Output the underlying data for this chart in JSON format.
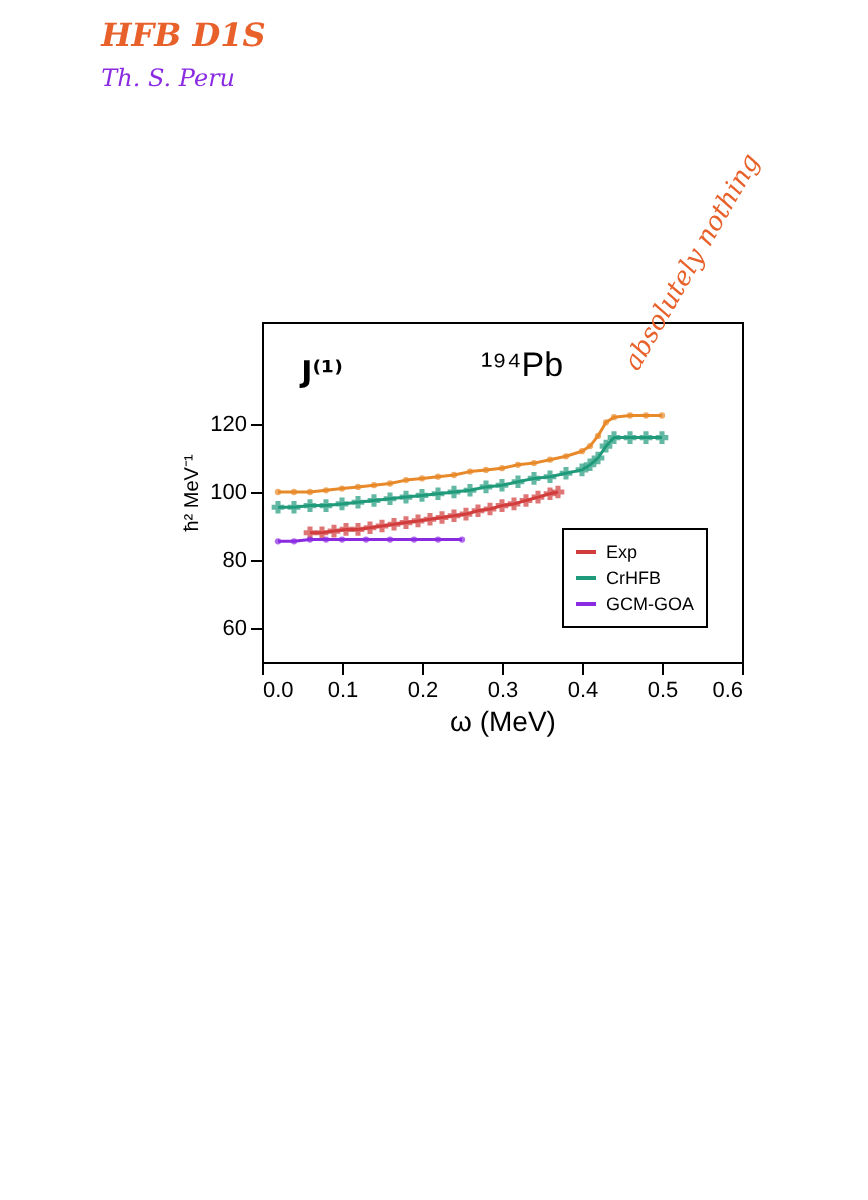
{
  "chart_data": {
    "type": "line",
    "title": "HFB D1S",
    "subtitle": "Th. S. Peru",
    "xlabel": "ω (MeV)",
    "ylabel": "ħ² MeV⁻¹",
    "annotations": [
      "absolutely nothing",
      "J⁽¹⁾",
      "¹⁹⁴Pb"
    ],
    "xlim": [
      0,
      0.6
    ],
    "xticks": [
      {
        "value": 0,
        "label": "0.0"
      },
      0.1,
      0.2,
      0.3,
      0.4,
      0.5,
      0.6
    ],
    "ylim": [
      50,
      150
    ],
    "yticks": [
      60,
      80,
      100,
      120
    ],
    "grid": false,
    "legend": "bottom right",
    "series": [
      {
        "color": "#e8892a",
        "marker": "circle",
        "x": [
          0.02,
          0.04,
          0.06,
          0.08,
          0.1,
          0.12,
          0.14,
          0.16,
          0.18,
          0.2,
          0.22,
          0.24,
          0.26,
          0.28,
          0.3,
          0.32,
          0.34,
          0.36,
          0.38,
          0.4,
          0.41,
          0.42,
          0.43,
          0.44,
          0.46,
          0.48,
          0.5
        ],
        "values": [
          100,
          100,
          100,
          100.5,
          101,
          101.5,
          102,
          102.5,
          103.5,
          104,
          104.5,
          105,
          106,
          106.5,
          107,
          108,
          108.5,
          109.5,
          110.5,
          112,
          113.5,
          116.5,
          120.5,
          122,
          122.5,
          122.5,
          122.5
        ]
      },
      {
        "name": "Exp",
        "color": "#d23c3c",
        "marker": "cross",
        "x": [
          0.06,
          0.075,
          0.09,
          0.105,
          0.12,
          0.135,
          0.15,
          0.165,
          0.18,
          0.195,
          0.21,
          0.225,
          0.24,
          0.255,
          0.27,
          0.285,
          0.3,
          0.315,
          0.33,
          0.345,
          0.36,
          0.37
        ],
        "values": [
          88,
          88,
          88.5,
          89,
          89,
          89.5,
          90,
          90.5,
          91,
          91.5,
          92,
          92.5,
          93,
          93.5,
          94.5,
          95,
          96,
          96.5,
          97.5,
          98.5,
          99.5,
          100
        ]
      },
      {
        "name": "CrHFB",
        "color": "#1f9a7a",
        "marker": "cross",
        "x": [
          0.02,
          0.04,
          0.06,
          0.08,
          0.1,
          0.12,
          0.14,
          0.16,
          0.18,
          0.2,
          0.22,
          0.24,
          0.26,
          0.28,
          0.3,
          0.32,
          0.34,
          0.36,
          0.38,
          0.4,
          0.41,
          0.42,
          0.43,
          0.44,
          0.46,
          0.48,
          0.5
        ],
        "values": [
          95.5,
          95.5,
          96,
          96,
          96.5,
          97,
          97.5,
          98,
          98.5,
          99,
          99.5,
          100,
          100.5,
          101.5,
          102,
          103,
          104,
          104.5,
          105.5,
          106.5,
          108,
          110,
          113.5,
          116,
          116,
          116,
          116
        ]
      },
      {
        "name": "GCM-GOA",
        "color": "#8a2be2",
        "marker": "circle",
        "x": [
          0.02,
          0.04,
          0.06,
          0.08,
          0.1,
          0.13,
          0.16,
          0.19,
          0.22,
          0.25
        ],
        "values": [
          85.5,
          85.5,
          86,
          86,
          86,
          86,
          86,
          86,
          86,
          86
        ]
      }
    ]
  }
}
